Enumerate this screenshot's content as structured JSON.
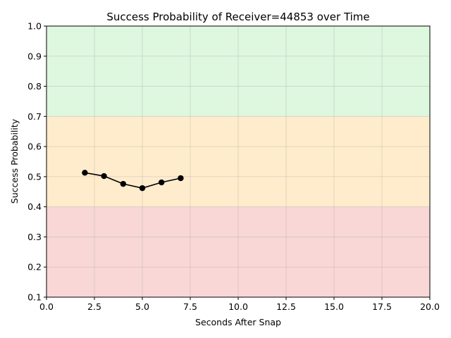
{
  "chart_data": {
    "type": "line",
    "title": "Success Probability of Receiver=44853 over Time",
    "xlabel": "Seconds After Snap",
    "ylabel": "Success Probability",
    "xlim": [
      0,
      20
    ],
    "ylim": [
      0.1,
      1.0
    ],
    "x_ticks": [
      0.0,
      2.5,
      5.0,
      7.5,
      10.0,
      12.5,
      15.0,
      17.5,
      20.0
    ],
    "x_tick_labels": [
      "0.0",
      "2.5",
      "5.0",
      "7.5",
      "10.0",
      "12.5",
      "15.0",
      "17.5",
      "20.0"
    ],
    "y_ticks": [
      0.1,
      0.2,
      0.3,
      0.4,
      0.5,
      0.6,
      0.7,
      0.8,
      0.9,
      1.0
    ],
    "y_tick_labels": [
      "0.1",
      "0.2",
      "0.3",
      "0.4",
      "0.5",
      "0.6",
      "0.7",
      "0.8",
      "0.9",
      "1.0"
    ],
    "grid": true,
    "bands": [
      {
        "from": 0.1,
        "to": 0.4,
        "color": "#f8d7d6"
      },
      {
        "from": 0.4,
        "to": 0.7,
        "color": "#ffeccc"
      },
      {
        "from": 0.7,
        "to": 1.0,
        "color": "#def7df"
      }
    ],
    "series": [
      {
        "color": "#000000",
        "marker": "circle",
        "x": [
          2,
          3,
          4,
          5,
          6,
          7
        ],
        "y": [
          0.513,
          0.502,
          0.476,
          0.462,
          0.481,
          0.495
        ]
      }
    ]
  }
}
